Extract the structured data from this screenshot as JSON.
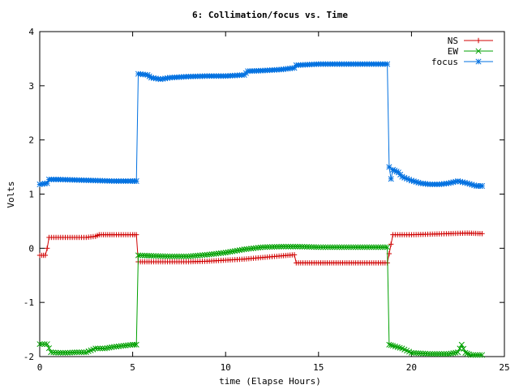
{
  "chart_data": {
    "type": "line",
    "title": "6: Collimation/focus vs. Time",
    "xlabel": "time (Elapse Hours)",
    "ylabel": "Volts",
    "xlim": [
      0,
      25
    ],
    "ylim": [
      -2,
      4
    ],
    "x_ticks": [
      "0",
      "5",
      "10",
      "15",
      "20",
      "25"
    ],
    "y_ticks": [
      "-2",
      "-1",
      "0",
      "1",
      "2",
      "3",
      "4"
    ],
    "grid": false,
    "legend_position": "top-right",
    "series": [
      {
        "name": "NS",
        "color": "#d00000",
        "marker": "plus",
        "points": [
          [
            0.0,
            -0.13
          ],
          [
            0.3,
            -0.13
          ],
          [
            0.4,
            0.0
          ],
          [
            0.5,
            0.2
          ],
          [
            1.0,
            0.2
          ],
          [
            1.5,
            0.2
          ],
          [
            2.0,
            0.2
          ],
          [
            2.5,
            0.2
          ],
          [
            3.0,
            0.22
          ],
          [
            3.2,
            0.25
          ],
          [
            4.0,
            0.25
          ],
          [
            5.0,
            0.25
          ],
          [
            5.2,
            0.25
          ],
          [
            5.3,
            -0.25
          ],
          [
            6.0,
            -0.25
          ],
          [
            7.0,
            -0.25
          ],
          [
            8.0,
            -0.25
          ],
          [
            9.0,
            -0.24
          ],
          [
            10.0,
            -0.22
          ],
          [
            11.0,
            -0.2
          ],
          [
            12.0,
            -0.17
          ],
          [
            13.0,
            -0.14
          ],
          [
            13.7,
            -0.12
          ],
          [
            13.8,
            -0.27
          ],
          [
            15.0,
            -0.27
          ],
          [
            17.0,
            -0.27
          ],
          [
            18.7,
            -0.27
          ],
          [
            18.8,
            -0.1
          ],
          [
            19.0,
            0.25
          ],
          [
            20.0,
            0.25
          ],
          [
            21.0,
            0.26
          ],
          [
            22.0,
            0.27
          ],
          [
            23.0,
            0.28
          ],
          [
            23.8,
            0.27
          ]
        ]
      },
      {
        "name": "EW",
        "color": "#00a000",
        "marker": "cross",
        "points": [
          [
            0.0,
            -1.77
          ],
          [
            0.4,
            -1.77
          ],
          [
            0.6,
            -1.92
          ],
          [
            1.0,
            -1.93
          ],
          [
            1.5,
            -1.93
          ],
          [
            2.0,
            -1.92
          ],
          [
            2.5,
            -1.92
          ],
          [
            3.0,
            -1.85
          ],
          [
            3.5,
            -1.85
          ],
          [
            4.0,
            -1.82
          ],
          [
            4.5,
            -1.8
          ],
          [
            5.0,
            -1.78
          ],
          [
            5.2,
            -1.78
          ],
          [
            5.3,
            -0.13
          ],
          [
            6.0,
            -0.14
          ],
          [
            7.0,
            -0.15
          ],
          [
            8.0,
            -0.15
          ],
          [
            9.0,
            -0.12
          ],
          [
            10.0,
            -0.08
          ],
          [
            11.0,
            -0.02
          ],
          [
            12.0,
            0.02
          ],
          [
            13.0,
            0.03
          ],
          [
            14.0,
            0.03
          ],
          [
            15.0,
            0.02
          ],
          [
            16.0,
            0.02
          ],
          [
            17.0,
            0.02
          ],
          [
            18.7,
            0.02
          ],
          [
            18.8,
            -1.78
          ],
          [
            19.0,
            -1.8
          ],
          [
            19.5,
            -1.85
          ],
          [
            20.0,
            -1.93
          ],
          [
            21.0,
            -1.95
          ],
          [
            22.0,
            -1.95
          ],
          [
            22.5,
            -1.92
          ],
          [
            22.7,
            -1.78
          ],
          [
            22.9,
            -1.93
          ],
          [
            23.2,
            -1.97
          ],
          [
            23.8,
            -1.97
          ]
        ]
      },
      {
        "name": "focus",
        "color": "#0070e0",
        "marker": "star",
        "points": [
          [
            0.0,
            1.18
          ],
          [
            0.4,
            1.2
          ],
          [
            0.5,
            1.27
          ],
          [
            1.0,
            1.27
          ],
          [
            2.0,
            1.26
          ],
          [
            3.0,
            1.25
          ],
          [
            4.0,
            1.24
          ],
          [
            5.0,
            1.24
          ],
          [
            5.2,
            1.24
          ],
          [
            5.3,
            3.22
          ],
          [
            5.8,
            3.2
          ],
          [
            6.0,
            3.15
          ],
          [
            6.5,
            3.12
          ],
          [
            7.0,
            3.15
          ],
          [
            8.0,
            3.17
          ],
          [
            9.0,
            3.18
          ],
          [
            10.0,
            3.18
          ],
          [
            11.0,
            3.2
          ],
          [
            11.2,
            3.27
          ],
          [
            12.0,
            3.28
          ],
          [
            13.0,
            3.3
          ],
          [
            13.7,
            3.33
          ],
          [
            13.8,
            3.38
          ],
          [
            15.0,
            3.4
          ],
          [
            16.0,
            3.4
          ],
          [
            17.0,
            3.4
          ],
          [
            18.7,
            3.4
          ],
          [
            18.8,
            1.5
          ],
          [
            18.9,
            1.28
          ],
          [
            19.0,
            1.45
          ],
          [
            19.3,
            1.4
          ],
          [
            19.5,
            1.32
          ],
          [
            20.0,
            1.25
          ],
          [
            20.5,
            1.2
          ],
          [
            21.0,
            1.18
          ],
          [
            21.5,
            1.18
          ],
          [
            22.0,
            1.2
          ],
          [
            22.5,
            1.24
          ],
          [
            23.0,
            1.2
          ],
          [
            23.5,
            1.15
          ],
          [
            23.8,
            1.15
          ]
        ]
      }
    ]
  }
}
